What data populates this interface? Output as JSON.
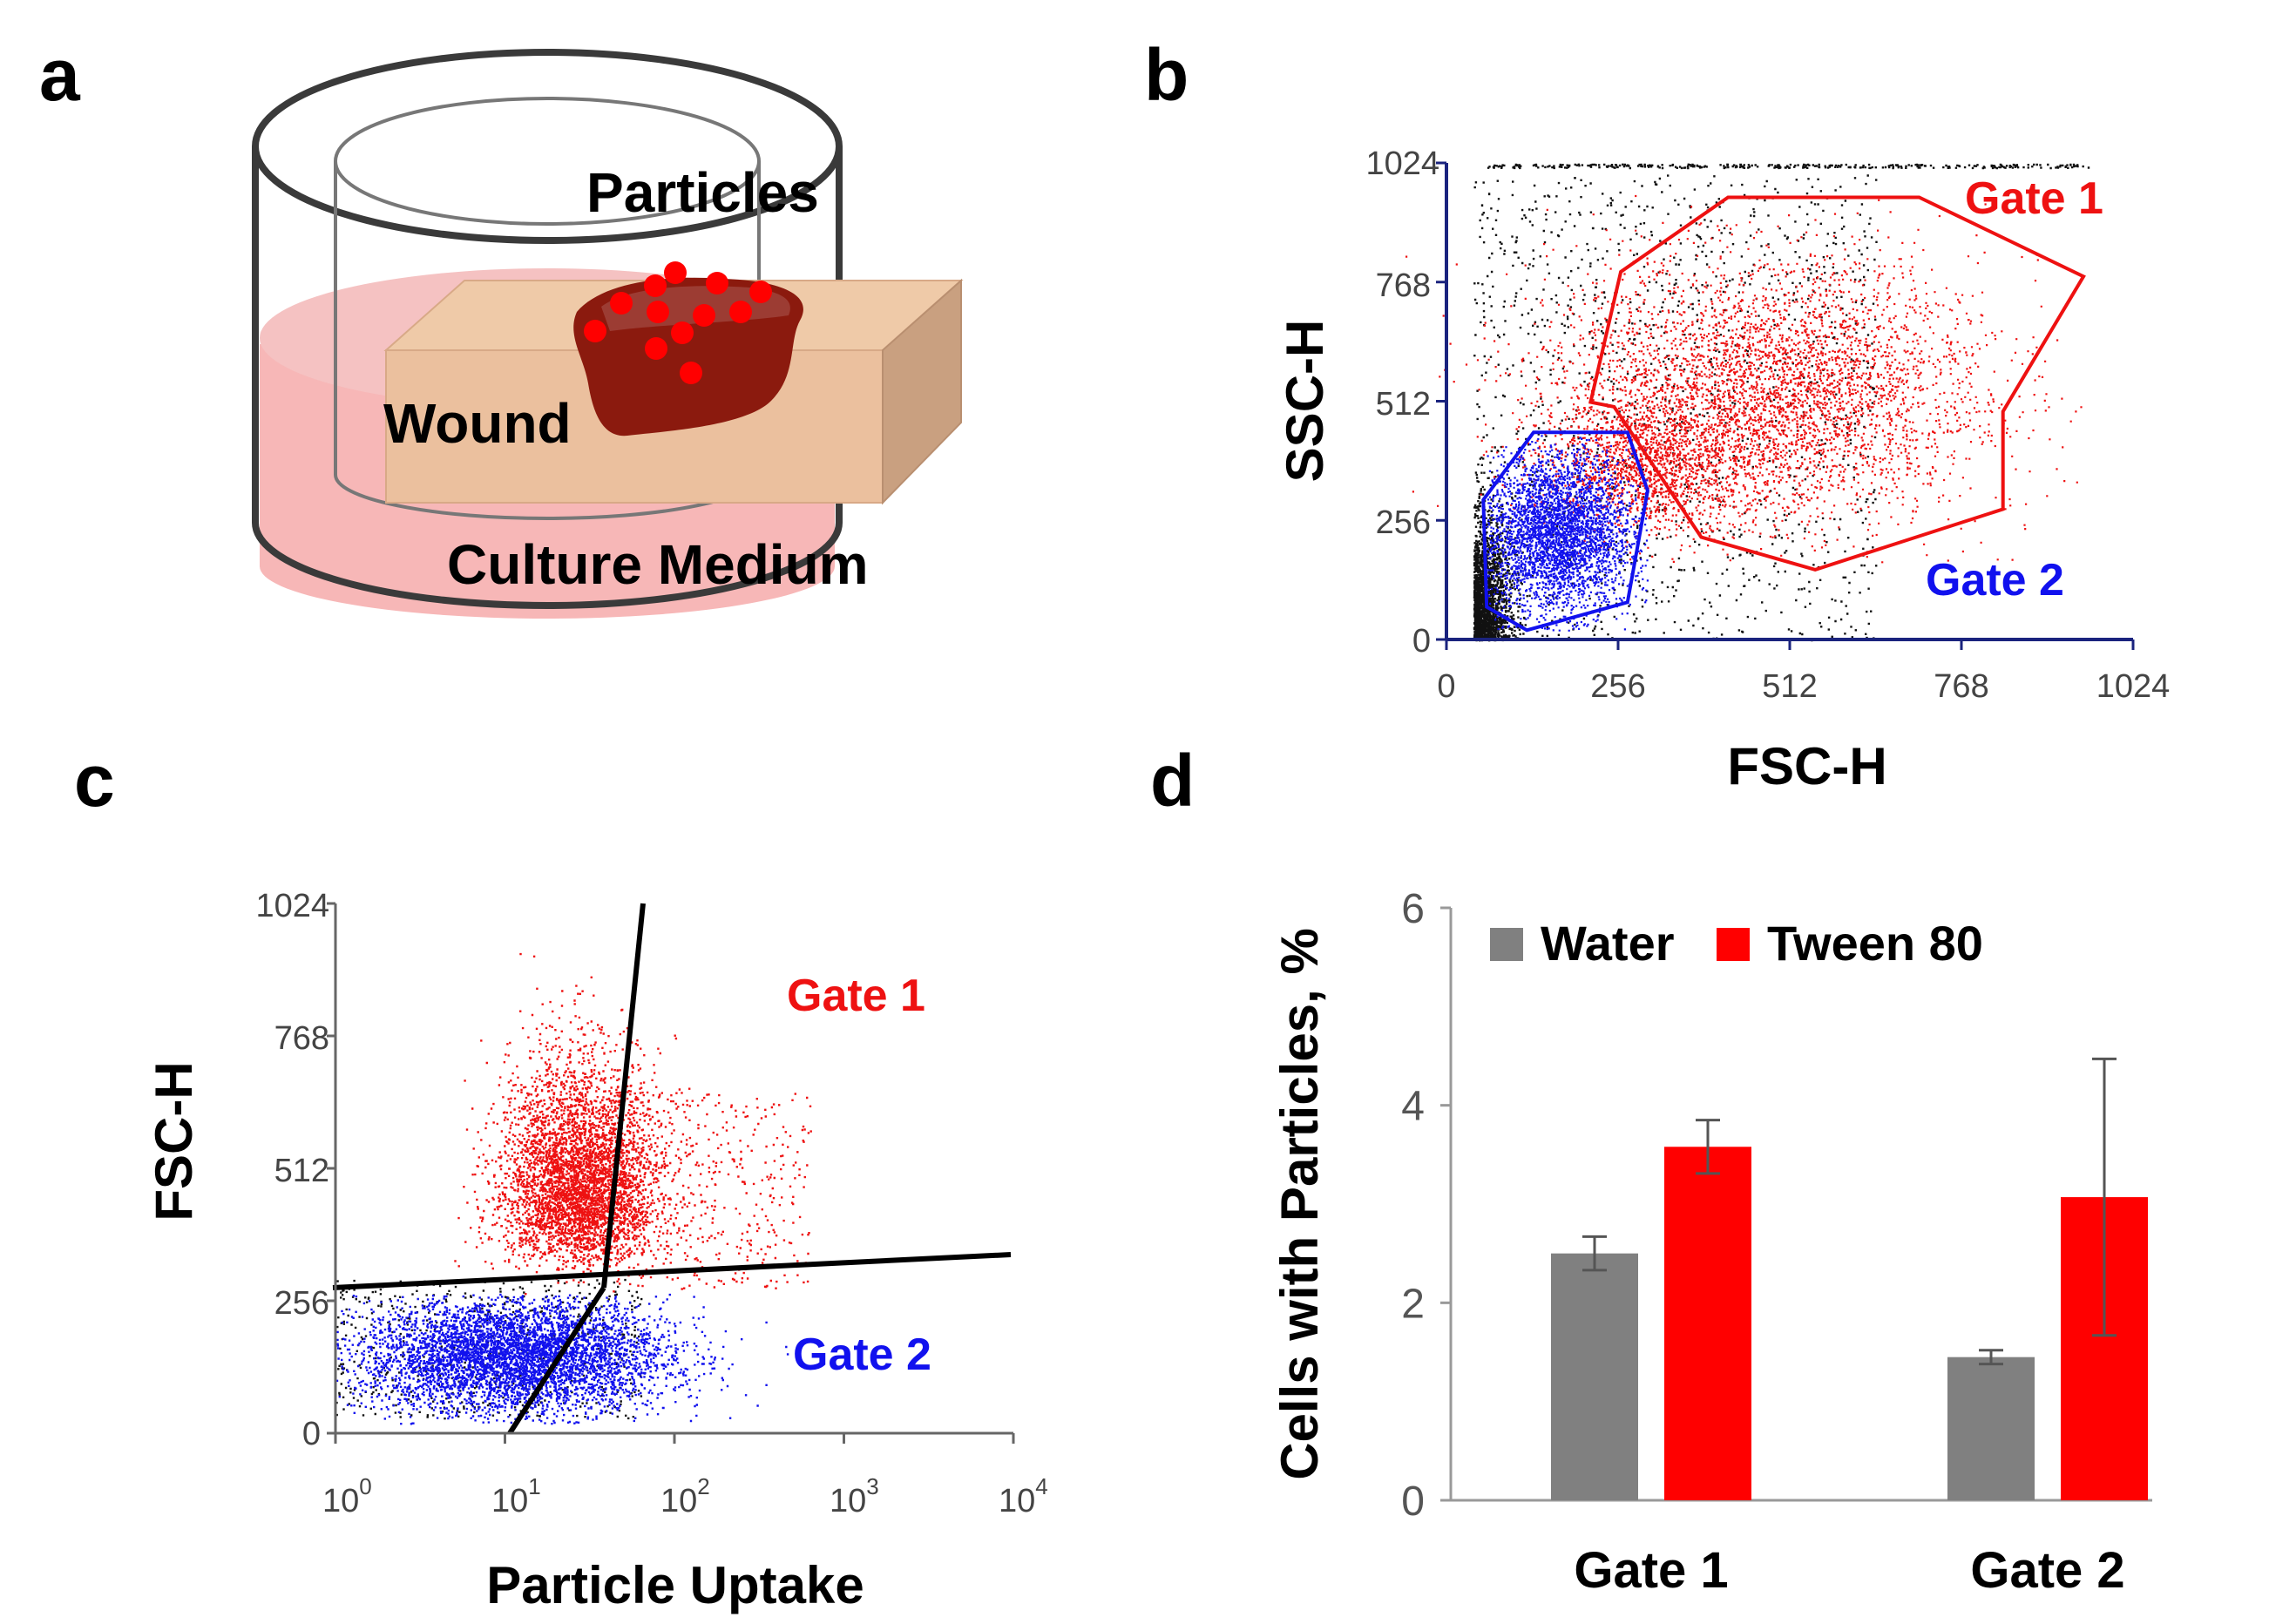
{
  "panels": {
    "a": {
      "label": "a",
      "particles_label": "Particles",
      "wound_label": "Wound",
      "medium_label": "Culture Medium"
    },
    "b": {
      "label": "b",
      "xlabel": "FSC-H",
      "ylabel": "SSC-H",
      "xticks": [
        "0",
        "256",
        "512",
        "768",
        "1024"
      ],
      "yticks": [
        "0",
        "256",
        "512",
        "768",
        "1024"
      ],
      "gate1": "Gate 1",
      "gate2": "Gate 2"
    },
    "c": {
      "label": "c",
      "xlabel": "Particle Uptake",
      "ylabel": "FSC-H",
      "xtick_base": "10",
      "xtick_exps": [
        "0",
        "1",
        "2",
        "3",
        "4"
      ],
      "yticks": [
        "0",
        "256",
        "512",
        "768",
        "1024"
      ],
      "gate1": "Gate 1",
      "gate2": "Gate 2"
    },
    "d": {
      "label": "d"
    }
  },
  "colors": {
    "water": "#808080",
    "tween": "#ff0000",
    "gate1": "#ee1111",
    "gate2": "#1111ee"
  },
  "chart_data": [
    {
      "type": "scatter",
      "panel": "b",
      "title": "",
      "xlabel": "FSC-H",
      "ylabel": "SSC-H",
      "xlim": [
        0,
        1024
      ],
      "ylim": [
        0,
        1024
      ],
      "ticks": [
        0,
        256,
        512,
        768,
        1024
      ],
      "series": [
        {
          "name": "Gate 1",
          "color": "#ee1111",
          "gate_polygon": [
            [
              215,
              510
            ],
            [
              260,
              790
            ],
            [
              420,
              950
            ],
            [
              705,
              950
            ],
            [
              950,
              780
            ],
            [
              830,
              490
            ],
            [
              830,
              280
            ],
            [
              550,
              150
            ],
            [
              380,
              220
            ],
            [
              250,
              500
            ]
          ]
        },
        {
          "name": "Gate 2",
          "color": "#1111ee",
          "gate_polygon": [
            [
              55,
              300
            ],
            [
              130,
              445
            ],
            [
              270,
              445
            ],
            [
              300,
              320
            ],
            [
              270,
              80
            ],
            [
              120,
              20
            ],
            [
              60,
              70
            ]
          ]
        }
      ]
    },
    {
      "type": "scatter",
      "panel": "c",
      "title": "",
      "xlabel": "Particle Uptake",
      "ylabel": "FSC-H",
      "xscale": "log",
      "xlim": [
        1,
        10000
      ],
      "ylim": [
        0,
        1024
      ],
      "ticks_y": [
        0,
        256,
        512,
        768,
        1024
      ],
      "series": [
        {
          "name": "Gate 1",
          "color": "#ee1111"
        },
        {
          "name": "Gate 2",
          "color": "#1111ee"
        }
      ]
    },
    {
      "type": "bar",
      "panel": "d",
      "title": "",
      "xlabel": "",
      "ylabel": "Cells with Particles, %",
      "categories": [
        "Gate 1",
        "Gate 2"
      ],
      "series": [
        {
          "name": "Water",
          "color": "#808080",
          "values": [
            2.5,
            1.45
          ],
          "errors": [
            0.17,
            0.07
          ]
        },
        {
          "name": "Tween 80",
          "color": "#ff0000",
          "values": [
            3.58,
            3.07
          ],
          "errors": [
            0.27,
            1.4
          ]
        }
      ],
      "ylim": [
        0,
        6
      ],
      "yticks": [
        "0",
        "2",
        "4",
        "6"
      ],
      "legend": "top-left"
    }
  ]
}
